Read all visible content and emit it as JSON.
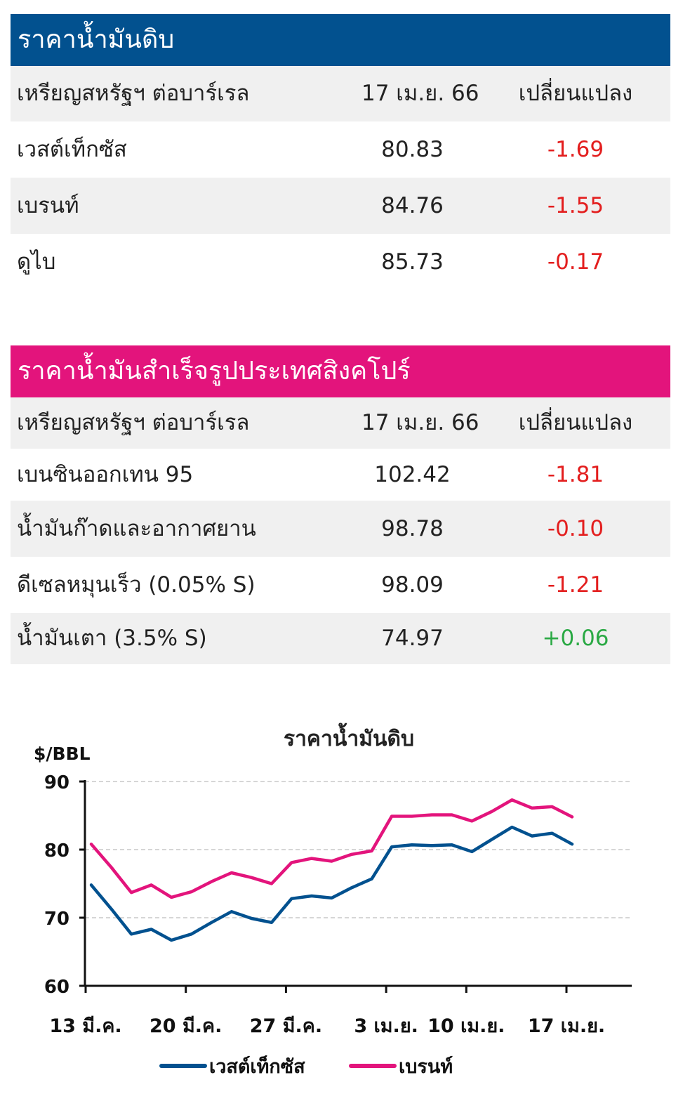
{
  "crude": {
    "title": "ราคาน้ำมันดิบ",
    "header": [
      "เหรียญสหรัฐฯ ต่อบาร์เรล",
      "17 เม.ย. 66",
      "เปลี่ยนแปลง"
    ],
    "rows": [
      {
        "name": "เวสต์เท็กซัส",
        "price": "80.83",
        "change": "-1.69"
      },
      {
        "name": "เบรนท์",
        "price": "84.76",
        "change": "-1.55"
      },
      {
        "name": "ดูไบ",
        "price": "85.73",
        "change": "-0.17"
      }
    ]
  },
  "refined": {
    "title": "ราคาน้ำมันสำเร็จรูปประเทศสิงคโปร์",
    "header": [
      "เหรียญสหรัฐฯ ต่อบาร์เรล",
      "17 เม.ย. 66",
      "เปลี่ยนแปลง"
    ],
    "rows": [
      {
        "name": "เบนซินออกเทน 95",
        "price": "102.42",
        "change": "-1.81"
      },
      {
        "name": "น้ำมันก๊าดและอากาศยาน",
        "price": "98.78",
        "change": "-0.10"
      },
      {
        "name": "ดีเซลหมุนเร็ว (0.05% S)",
        "price": "98.09",
        "change": "-1.21"
      },
      {
        "name": "น้ำมันเตา (3.5% S)",
        "price": "74.97",
        "change": "+0.06"
      }
    ]
  },
  "colors": {
    "negative": "#e31e1e",
    "positive": "#2aa944",
    "wti": "#02518f",
    "brent": "#e3147c"
  },
  "chart_data": {
    "type": "line",
    "title": "ราคาน้ำมันดิบ",
    "ylabel": "$/BBL",
    "ylim": [
      60,
      90
    ],
    "yticks": [
      60,
      70,
      80,
      90
    ],
    "grid": true,
    "legend_position": "bottom",
    "xticklabels": [
      "13 มี.ค.",
      "20 มี.ค.",
      "27 มี.ค.",
      "3 เม.ย.",
      "10 เม.ย.",
      "17 เม.ย."
    ],
    "x": [
      "13 มี.ค.",
      "14 มี.ค.",
      "15 มี.ค.",
      "16 มี.ค.",
      "17 มี.ค.",
      "20 มี.ค.",
      "21 มี.ค.",
      "22 มี.ค.",
      "23 มี.ค.",
      "24 มี.ค.",
      "27 มี.ค.",
      "28 มี.ค.",
      "29 มี.ค.",
      "30 มี.ค.",
      "31 มี.ค.",
      "3 เม.ย.",
      "4 เม.ย.",
      "5 เม.ย.",
      "6 เม.ย.",
      "10 เม.ย.",
      "11 เม.ย.",
      "12 เม.ย.",
      "13 เม.ย.",
      "14 เม.ย.",
      "17 เม.ย."
    ],
    "series": [
      {
        "name": "เวสต์เท็กซัส",
        "color": "#02518f",
        "values": [
          74.8,
          71.3,
          67.6,
          68.3,
          66.7,
          67.6,
          69.3,
          70.9,
          69.9,
          69.3,
          72.8,
          73.2,
          72.9,
          74.4,
          75.7,
          80.4,
          80.7,
          80.6,
          80.7,
          79.7,
          81.5,
          83.3,
          82.0,
          82.4,
          80.8
        ]
      },
      {
        "name": "เบรนท์",
        "color": "#e3147c",
        "values": [
          80.8,
          77.4,
          73.7,
          74.8,
          73.0,
          73.8,
          75.3,
          76.6,
          75.9,
          75.0,
          78.1,
          78.7,
          78.3,
          79.3,
          79.8,
          84.9,
          84.9,
          85.1,
          85.1,
          84.2,
          85.6,
          87.3,
          86.1,
          86.3,
          84.8
        ]
      }
    ]
  }
}
